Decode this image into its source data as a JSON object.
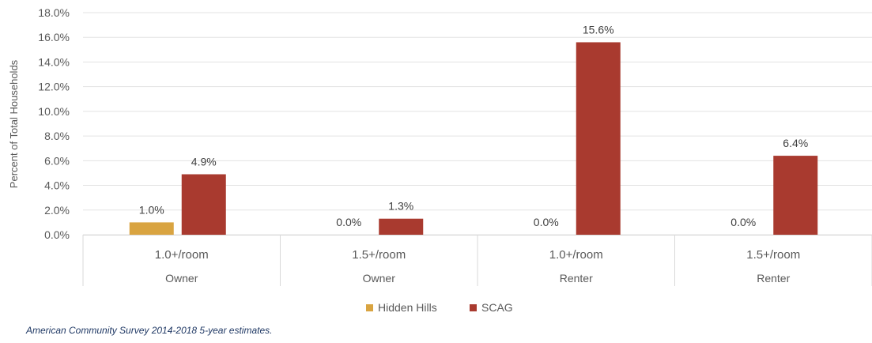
{
  "chart_data": {
    "type": "bar",
    "ylabel": "Percent of Total Households",
    "ylim": [
      0,
      18
    ],
    "yticks": [
      "0.0%",
      "2.0%",
      "4.0%",
      "6.0%",
      "8.0%",
      "10.0%",
      "12.0%",
      "14.0%",
      "16.0%",
      "18.0%"
    ],
    "grid": true,
    "legend_position": "bottom",
    "categories": [
      {
        "label": "1.0+/room",
        "group": "Owner"
      },
      {
        "label": "1.5+/room",
        "group": "Owner"
      },
      {
        "label": "1.0+/room",
        "group": "Renter"
      },
      {
        "label": "1.5+/room",
        "group": "Renter"
      }
    ],
    "series": [
      {
        "name": "Hidden Hills",
        "color": "#d9a441",
        "values": [
          1.0,
          0.0,
          0.0,
          0.0
        ],
        "labels": [
          "1.0%",
          "0.0%",
          "0.0%",
          "0.0%"
        ]
      },
      {
        "name": "SCAG",
        "color": "#a93a2f",
        "values": [
          4.9,
          1.3,
          15.6,
          6.4
        ],
        "labels": [
          "4.9%",
          "1.3%",
          "15.6%",
          "6.4%"
        ]
      }
    ]
  },
  "source_note": "American Community Survey 2014-2018 5-year estimates."
}
